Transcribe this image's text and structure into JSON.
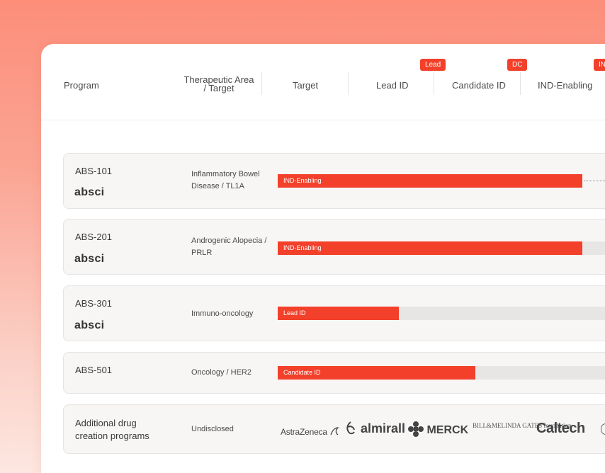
{
  "header": {
    "program": "Program",
    "therapeutic_area": "Therapeutic Area\n/ Target",
    "ta_line1": "Therapeutic Area",
    "ta_line2": "/ Target",
    "target": "Target",
    "lead_id": "Lead ID",
    "candidate_id": "Candidate ID",
    "ind_enabling": "IND-Enabling"
  },
  "stage_badges": {
    "lead": "Lead",
    "dc": "DC",
    "ind": "IN"
  },
  "programs": [
    {
      "name": "ABS-101",
      "logo": "absci",
      "area_line1": "Inflammatory Bowel",
      "area_line2": "Disease / TL1A",
      "stage": "IND-Enabling",
      "progress": 0.83
    },
    {
      "name": "ABS-201",
      "logo": "absci",
      "area_line1": "Androgenic Alopecia /",
      "area_line2": "PRLR",
      "stage": "IND-Enabling",
      "progress": 0.83
    },
    {
      "name": "ABS-301",
      "logo": "absci",
      "area_line1": "Immuno-oncology",
      "area_line2": "",
      "stage": "Lead ID",
      "progress": 0.33
    },
    {
      "name": "ABS-501",
      "logo": "",
      "area_line1": "Oncology / HER2",
      "area_line2": "",
      "stage": "Candidate ID",
      "progress": 0.53
    }
  ],
  "additional": {
    "name_line1": "Additional drug",
    "name_line2": "creation programs",
    "area": "Undisclosed",
    "partners": [
      "AstraZeneca",
      "almirall",
      "MERCK",
      "BILL&MELINDA GATES foundation",
      "Caltech"
    ]
  },
  "colors": {
    "accent": "#f2402a",
    "track": "#e8e6e4",
    "row_bg": "#f7f6f5"
  }
}
